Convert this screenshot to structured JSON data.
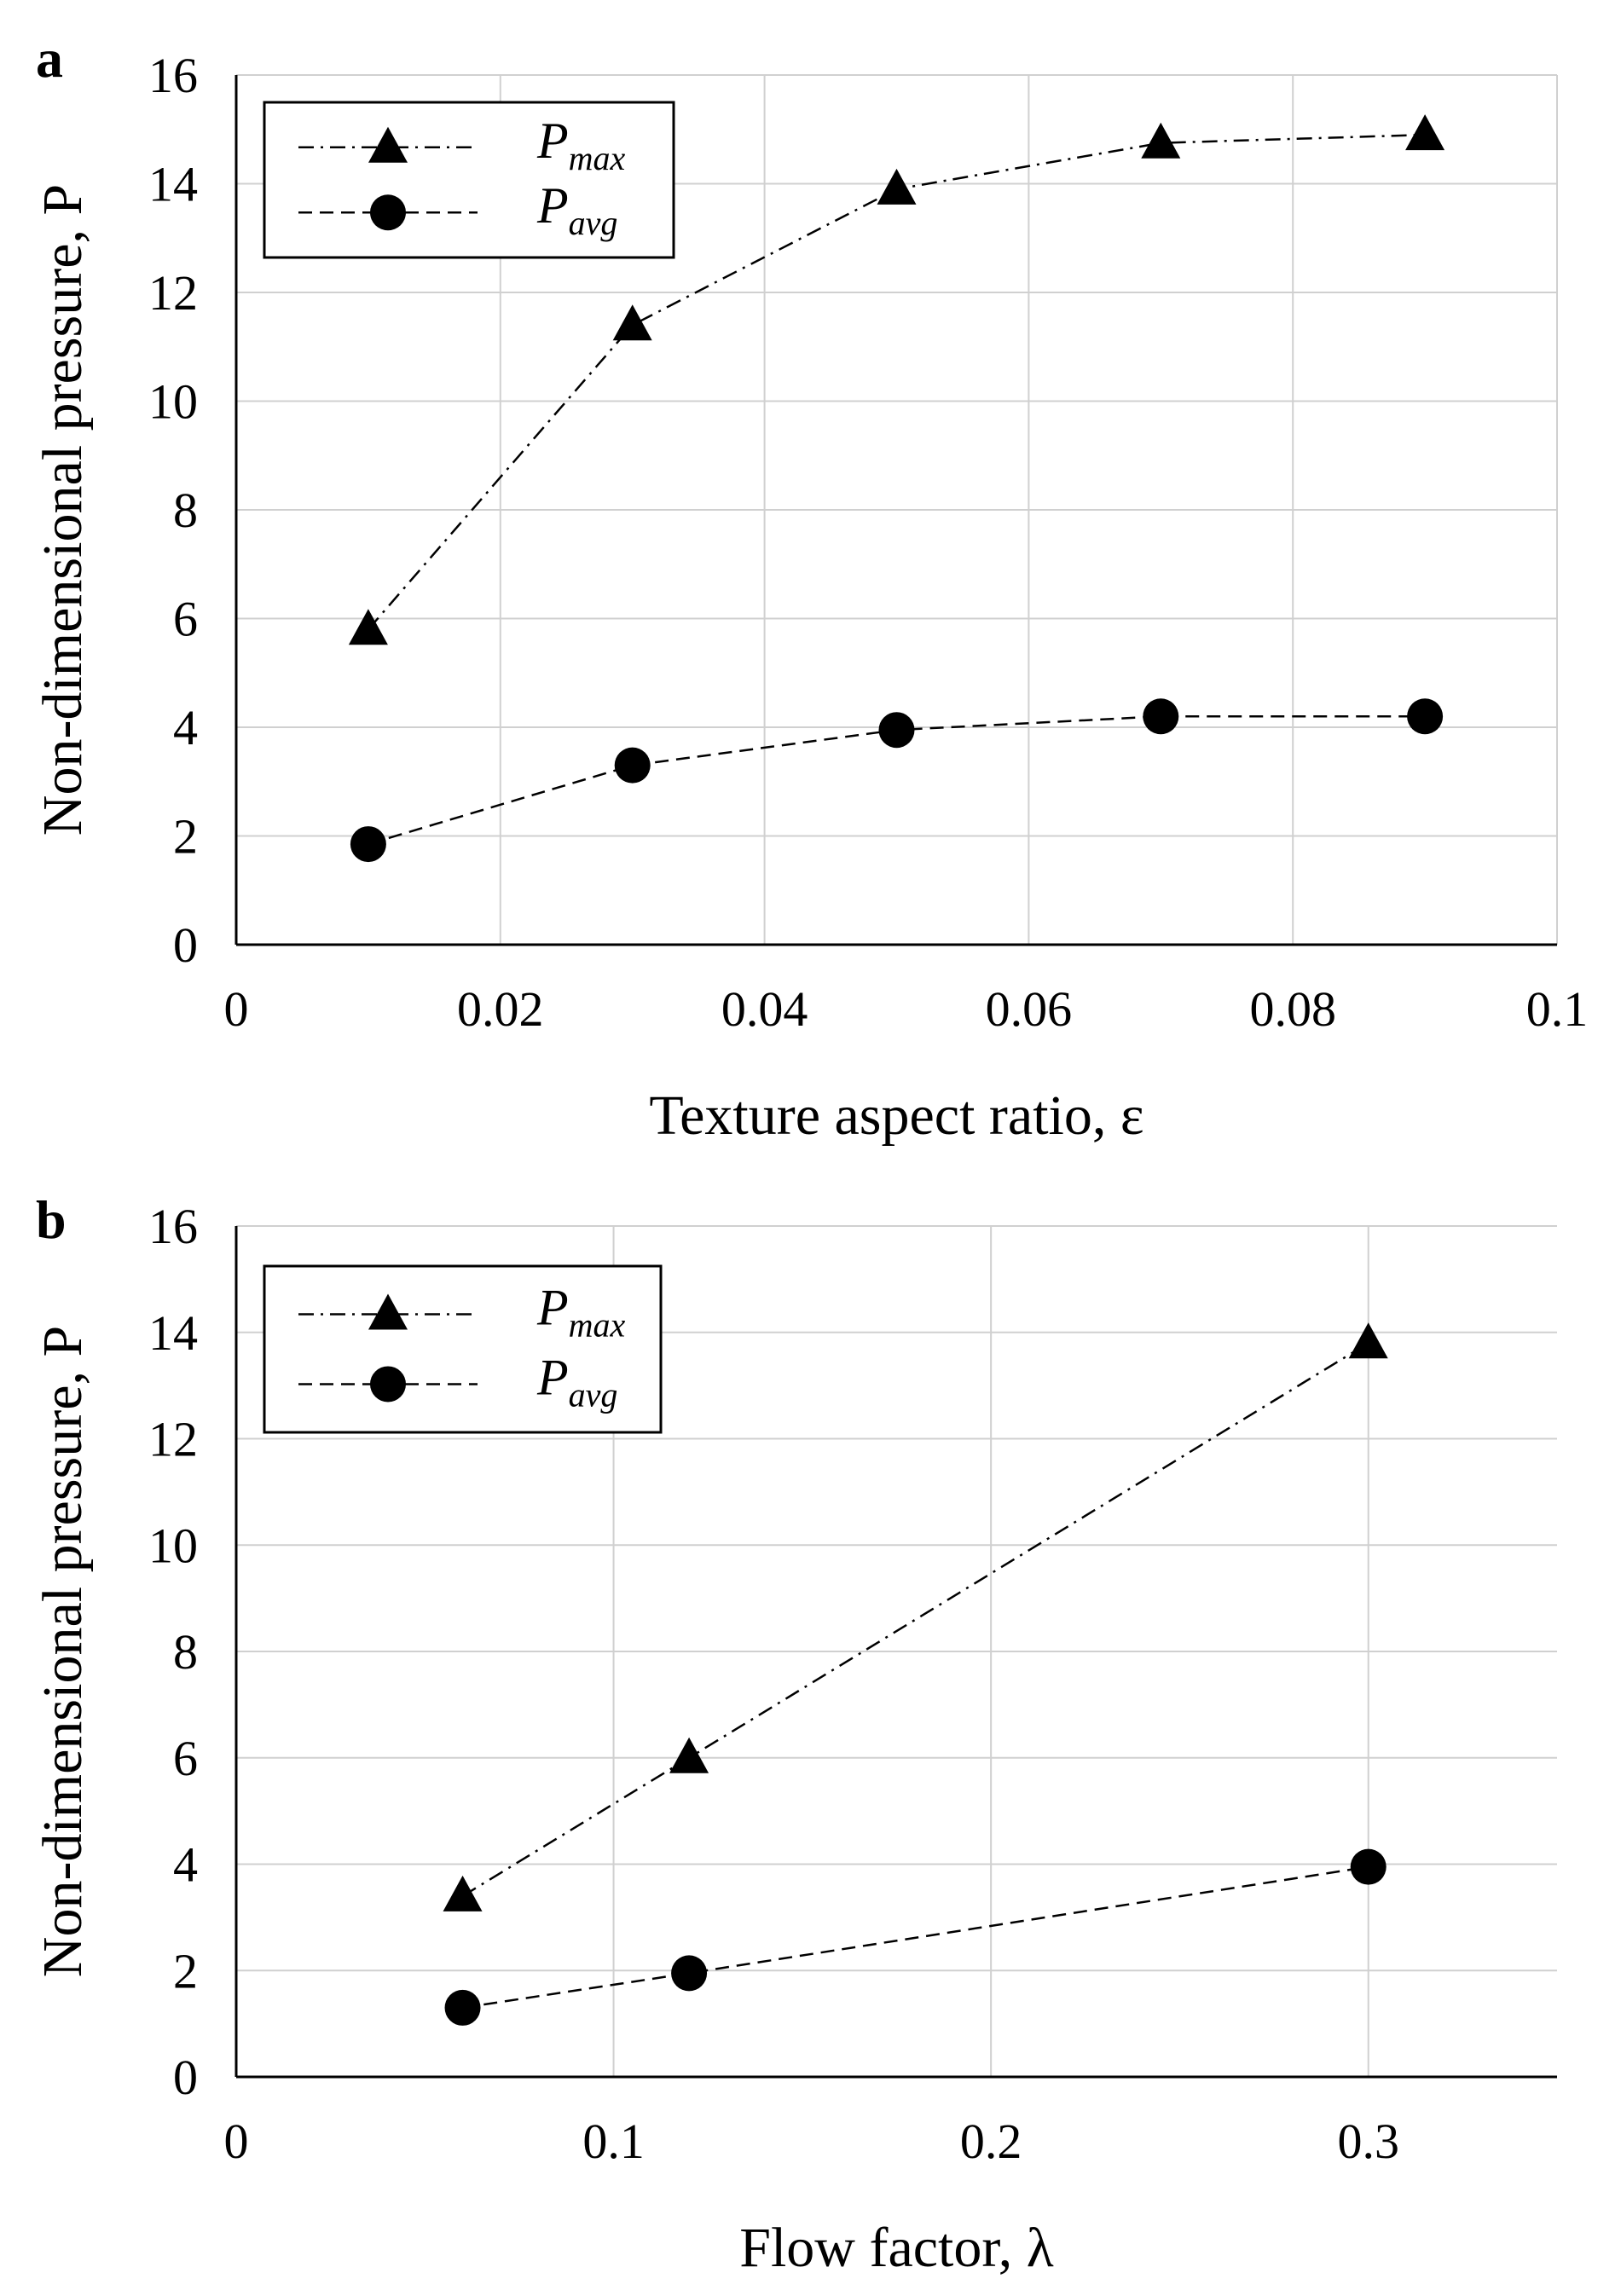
{
  "chart_data": [
    {
      "type": "line",
      "panel_label": "a",
      "xlabel": "Texture aspect ratio, ε",
      "ylabel": "Non-dimensional pressure, P",
      "xlim": [
        0,
        0.1
      ],
      "ylim": [
        0,
        16
      ],
      "xticks": [
        0,
        0.02,
        0.04,
        0.06,
        0.08,
        0.1
      ],
      "xtick_labels": [
        "0",
        "0.02",
        "0.04",
        "0.06",
        "0.08",
        "0.1"
      ],
      "yticks": [
        0,
        2,
        4,
        6,
        8,
        10,
        12,
        14,
        16
      ],
      "ytick_labels": [
        "0",
        "2",
        "4",
        "6",
        "8",
        "10",
        "12",
        "14",
        "16"
      ],
      "grid": true,
      "legend_position": "top-left",
      "series": [
        {
          "name": "P_max",
          "label_main": "P",
          "label_sub": "max",
          "marker": "triangle",
          "line_style": "dash-dot",
          "x": [
            0.01,
            0.03,
            0.05,
            0.07,
            0.09
          ],
          "y": [
            5.8,
            11.4,
            13.9,
            14.75,
            14.9
          ]
        },
        {
          "name": "P_avg",
          "label_main": "P",
          "label_sub": "avg",
          "marker": "circle",
          "line_style": "dashed",
          "x": [
            0.01,
            0.03,
            0.05,
            0.07,
            0.09
          ],
          "y": [
            1.85,
            3.3,
            3.95,
            4.2,
            4.2
          ]
        }
      ]
    },
    {
      "type": "line",
      "panel_label": "b",
      "xlabel": "Flow factor, λ",
      "ylabel": "Non-dimensional pressure, P",
      "xlim": [
        0,
        0.35
      ],
      "ylim": [
        0,
        16
      ],
      "xticks": [
        0,
        0.1,
        0.2,
        0.3
      ],
      "xtick_labels": [
        "0",
        "0.1",
        "0.2",
        "0.3"
      ],
      "yticks": [
        0,
        2,
        4,
        6,
        8,
        10,
        12,
        14,
        16
      ],
      "ytick_labels": [
        "0",
        "2",
        "4",
        "6",
        "8",
        "10",
        "12",
        "14",
        "16"
      ],
      "grid": true,
      "legend_position": "top-left",
      "series": [
        {
          "name": "P_max",
          "label_main": "P",
          "label_sub": "max",
          "marker": "triangle",
          "line_style": "dash-dot",
          "x": [
            0.06,
            0.12,
            0.3
          ],
          "y": [
            3.4,
            6.0,
            13.8
          ]
        },
        {
          "name": "P_avg",
          "label_main": "P",
          "label_sub": "avg",
          "marker": "circle",
          "line_style": "dashed",
          "x": [
            0.06,
            0.12,
            0.3
          ],
          "y": [
            1.3,
            1.95,
            3.95
          ]
        }
      ]
    }
  ]
}
